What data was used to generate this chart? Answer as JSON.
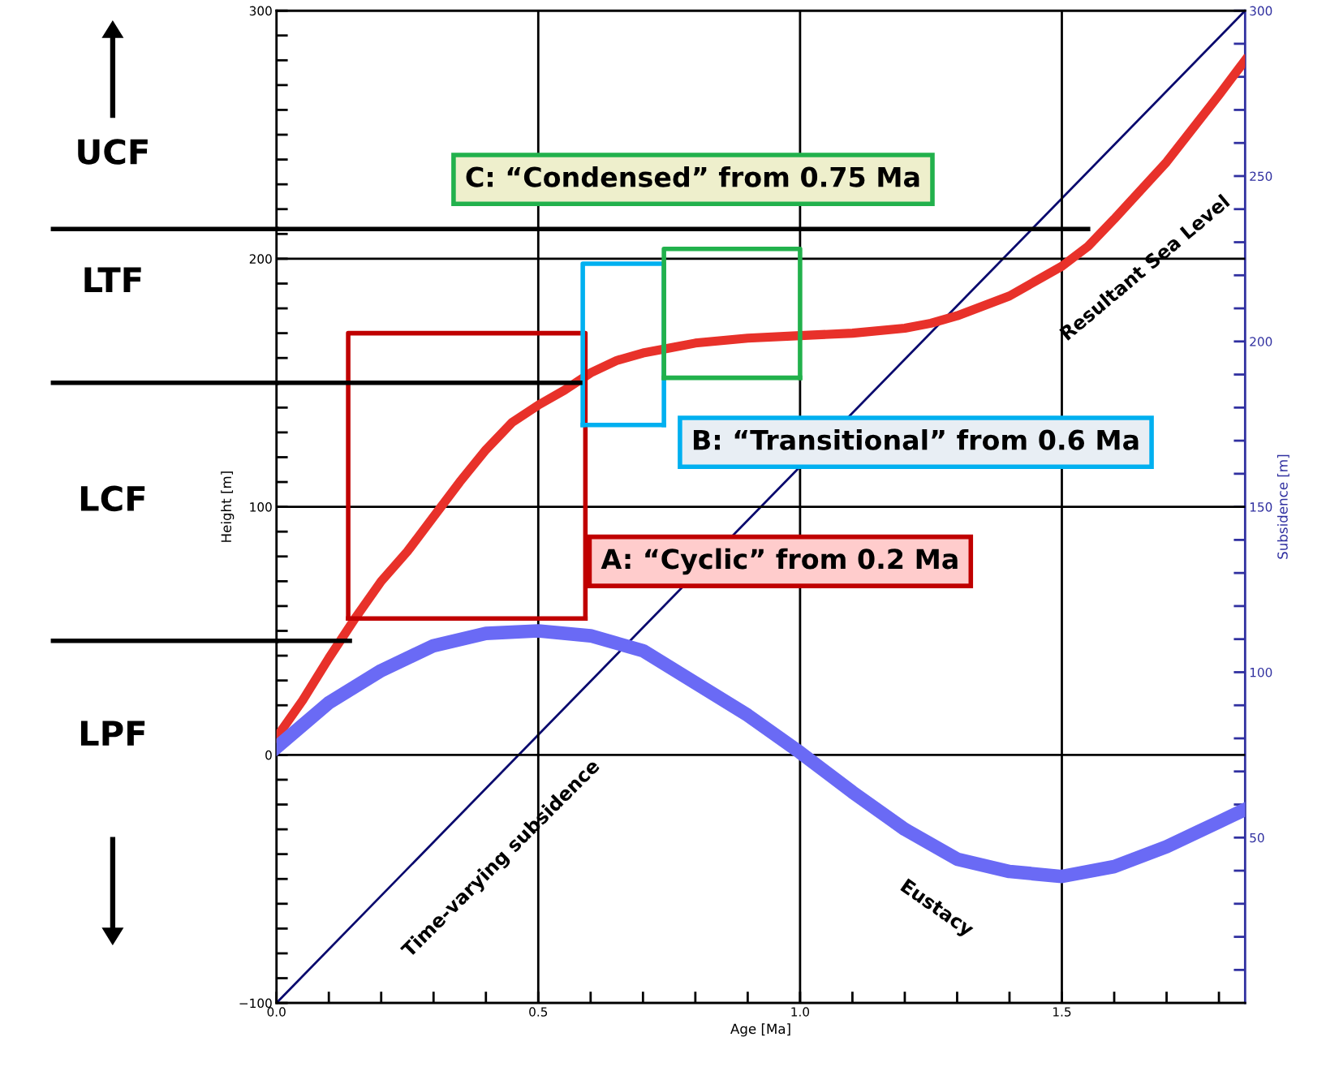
{
  "chart_data": {
    "type": "line",
    "xlabel": "Age [Ma]",
    "ylabel": "Height [m]",
    "y2label": "Subsidence [m]",
    "xlim": [
      0,
      1.85
    ],
    "ylim": [
      -100,
      300
    ],
    "y2lim": [
      0,
      300
    ],
    "xticks": [
      {
        "value": 0,
        "label": "0.0"
      },
      {
        "value": 0.1,
        "label": null
      },
      {
        "value": 0.2,
        "label": null
      },
      {
        "value": 0.3,
        "label": null
      },
      {
        "value": 0.4,
        "label": null
      },
      {
        "value": 0.5,
        "label": "0.5"
      },
      {
        "value": 0.6,
        "label": null
      },
      {
        "value": 0.7,
        "label": null
      },
      {
        "value": 0.8,
        "label": null
      },
      {
        "value": 0.9,
        "label": null
      },
      {
        "value": 1.0,
        "label": "1.0"
      },
      {
        "value": 1.1,
        "label": null
      },
      {
        "value": 1.2,
        "label": null
      },
      {
        "value": 1.3,
        "label": null
      },
      {
        "value": 1.4,
        "label": null
      },
      {
        "value": 1.5,
        "label": "1.5"
      },
      {
        "value": 1.6,
        "label": null
      },
      {
        "value": 1.7,
        "label": null
      },
      {
        "value": 1.8,
        "label": null
      }
    ],
    "yticks": [
      {
        "value": -100,
        "label": "−100"
      },
      {
        "value": -90,
        "label": null
      },
      {
        "value": -80,
        "label": null
      },
      {
        "value": -70,
        "label": null
      },
      {
        "value": -60,
        "label": null
      },
      {
        "value": -50,
        "label": null
      },
      {
        "value": -40,
        "label": null
      },
      {
        "value": -30,
        "label": null
      },
      {
        "value": -20,
        "label": null
      },
      {
        "value": -10,
        "label": null
      },
      0,
      {
        "value": 10,
        "label": null
      },
      {
        "value": 20,
        "label": null
      },
      {
        "value": 30,
        "label": null
      },
      {
        "value": 40,
        "label": null
      },
      {
        "value": 50,
        "label": null
      },
      {
        "value": 60,
        "label": null
      },
      {
        "value": 70,
        "label": null
      },
      {
        "value": 80,
        "label": null
      },
      {
        "value": 90,
        "label": null
      },
      100,
      {
        "value": 110,
        "label": null
      },
      {
        "value": 120,
        "label": null
      },
      {
        "value": 130,
        "label": null
      },
      {
        "value": 140,
        "label": null
      },
      {
        "value": 150,
        "label": null
      },
      {
        "value": 160,
        "label": null
      },
      {
        "value": 170,
        "label": null
      },
      {
        "value": 180,
        "label": null
      },
      {
        "value": 190,
        "label": null
      },
      200,
      {
        "value": 210,
        "label": null
      },
      {
        "value": 220,
        "label": null
      },
      {
        "value": 230,
        "label": null
      },
      {
        "value": 240,
        "label": null
      },
      {
        "value": 250,
        "label": null
      },
      {
        "value": 260,
        "label": null
      },
      {
        "value": 270,
        "label": null
      },
      {
        "value": 280,
        "label": null
      },
      {
        "value": 290,
        "label": null
      },
      300
    ],
    "y2ticks": [
      {
        "value": 10,
        "label": null
      },
      {
        "value": 20,
        "label": null
      },
      {
        "value": 30,
        "label": null
      },
      {
        "value": 40,
        "label": null
      },
      50,
      {
        "value": 60,
        "label": null
      },
      {
        "value": 70,
        "label": null
      },
      {
        "value": 80,
        "label": null
      },
      {
        "value": 90,
        "label": null
      },
      100,
      {
        "value": 110,
        "label": null
      },
      {
        "value": 120,
        "label": null
      },
      {
        "value": 130,
        "label": null
      },
      {
        "value": 140,
        "label": null
      },
      150,
      {
        "value": 160,
        "label": null
      },
      {
        "value": 170,
        "label": null
      },
      {
        "value": 180,
        "label": null
      },
      {
        "value": 190,
        "label": null
      },
      200,
      {
        "value": 210,
        "label": null
      },
      {
        "value": 220,
        "label": null
      },
      {
        "value": 230,
        "label": null
      },
      {
        "value": 240,
        "label": null
      },
      250,
      {
        "value": 260,
        "label": null
      },
      {
        "value": 270,
        "label": null
      },
      {
        "value": 280,
        "label": null
      },
      {
        "value": 290,
        "label": null
      },
      300
    ],
    "grid": true,
    "legend": false,
    "line_style": "solid",
    "marker": "none",
    "series": [
      {
        "name": "Resultant Sea Level",
        "color": "#e8312a",
        "x": [
          0,
          0.05,
          0.1,
          0.15,
          0.2,
          0.25,
          0.3,
          0.35,
          0.4,
          0.45,
          0.5,
          0.55,
          0.6,
          0.65,
          0.7,
          0.75,
          0.8,
          0.9,
          1.0,
          1.1,
          1.2,
          1.25,
          1.3,
          1.4,
          1.5,
          1.55,
          1.6,
          1.7,
          1.8,
          1.85
        ],
        "values": [
          7,
          22,
          39,
          55,
          70,
          82,
          96,
          110,
          123,
          134,
          141,
          147,
          154,
          159,
          162,
          164,
          166,
          168,
          169,
          170,
          172,
          174,
          177,
          185,
          197,
          205,
          216,
          239,
          266,
          280
        ]
      },
      {
        "name": "Eustacy",
        "color": "#6a6af5",
        "x": [
          0,
          0.1,
          0.2,
          0.3,
          0.4,
          0.5,
          0.6,
          0.7,
          0.8,
          0.9,
          1.0,
          1.1,
          1.2,
          1.3,
          1.4,
          1.5,
          1.6,
          1.7,
          1.8,
          1.85
        ],
        "values": [
          3,
          21,
          34,
          44,
          49,
          50,
          48,
          42,
          29,
          16,
          1,
          -15,
          -30,
          -42,
          -47,
          -49,
          -45,
          -37,
          -27,
          -22
        ]
      },
      {
        "name": "Time-varying subsidence",
        "color": "#0a0a6e",
        "axis": "y2",
        "x": [
          0,
          1.85
        ],
        "values": [
          0,
          300
        ]
      },
      {
        "color": "#c00000",
        "x": [
          0.137,
          0.137,
          0.59,
          0.59
        ],
        "values": [
          55,
          170,
          170,
          55
        ]
      },
      {
        "color": "#00b0f0",
        "x": [
          0.585,
          0.585,
          0.74,
          0.74
        ],
        "values": [
          133,
          198,
          198,
          133
        ]
      },
      {
        "color": "#22b14c",
        "x": [
          0.74,
          0.74,
          1.0,
          1.0
        ],
        "values": [
          152,
          204,
          204,
          152
        ]
      },
      {
        "color": "#c00000",
        "x": [
          0.137,
          0.59
        ],
        "values": [
          55,
          55
        ]
      },
      {
        "color": "#00b0f0",
        "x": [
          0.585,
          0.74
        ],
        "values": [
          133,
          133
        ]
      },
      {
        "color": "#22b14c",
        "x": [
          0.74,
          1.0
        ],
        "values": [
          152,
          152
        ]
      },
      {
        "color": "#000000",
        "x": [
          0,
          1.55
        ],
        "values": [
          212,
          212
        ]
      },
      {
        "color": "#000000",
        "x": [
          0,
          0.58
        ],
        "values": [
          150,
          150
        ]
      },
      {
        "color": "#000000",
        "x": [
          0,
          0.14
        ],
        "values": [
          46,
          46
        ]
      }
    ],
    "annotations": [
      "UCF",
      "LTF",
      "LCF",
      "LPF",
      "A: “Cyclic” from 0.2 Ma",
      "B: “Transitional” from 0.6 Ma",
      "C: “Condensed” from 0.75 Ma"
    ]
  }
}
